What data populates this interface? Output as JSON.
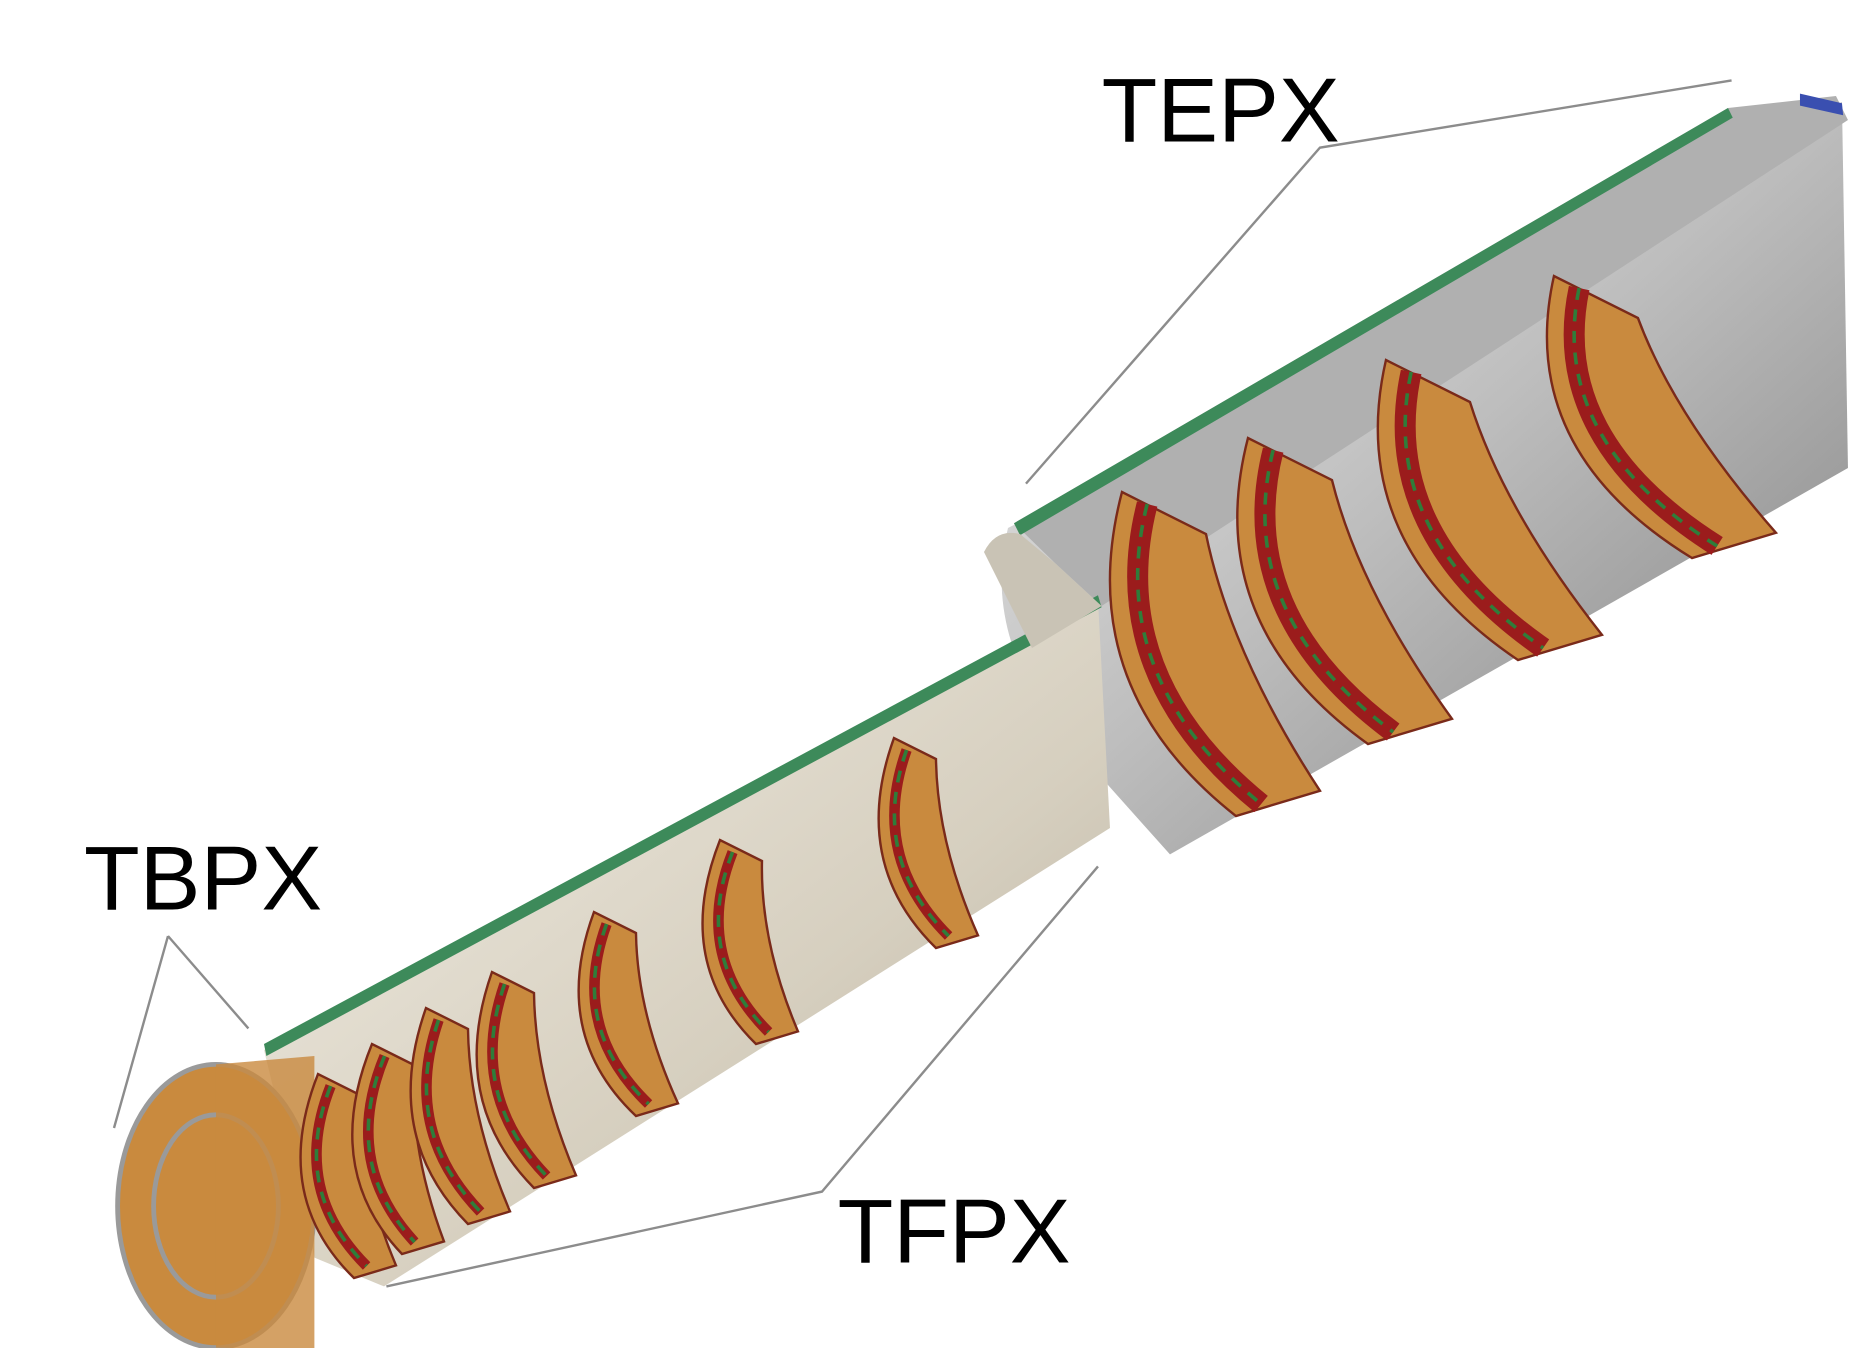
{
  "labels": {
    "tepx": "TEPX",
    "tbpx": "TBPX",
    "tfpx": "TFPX"
  }
}
